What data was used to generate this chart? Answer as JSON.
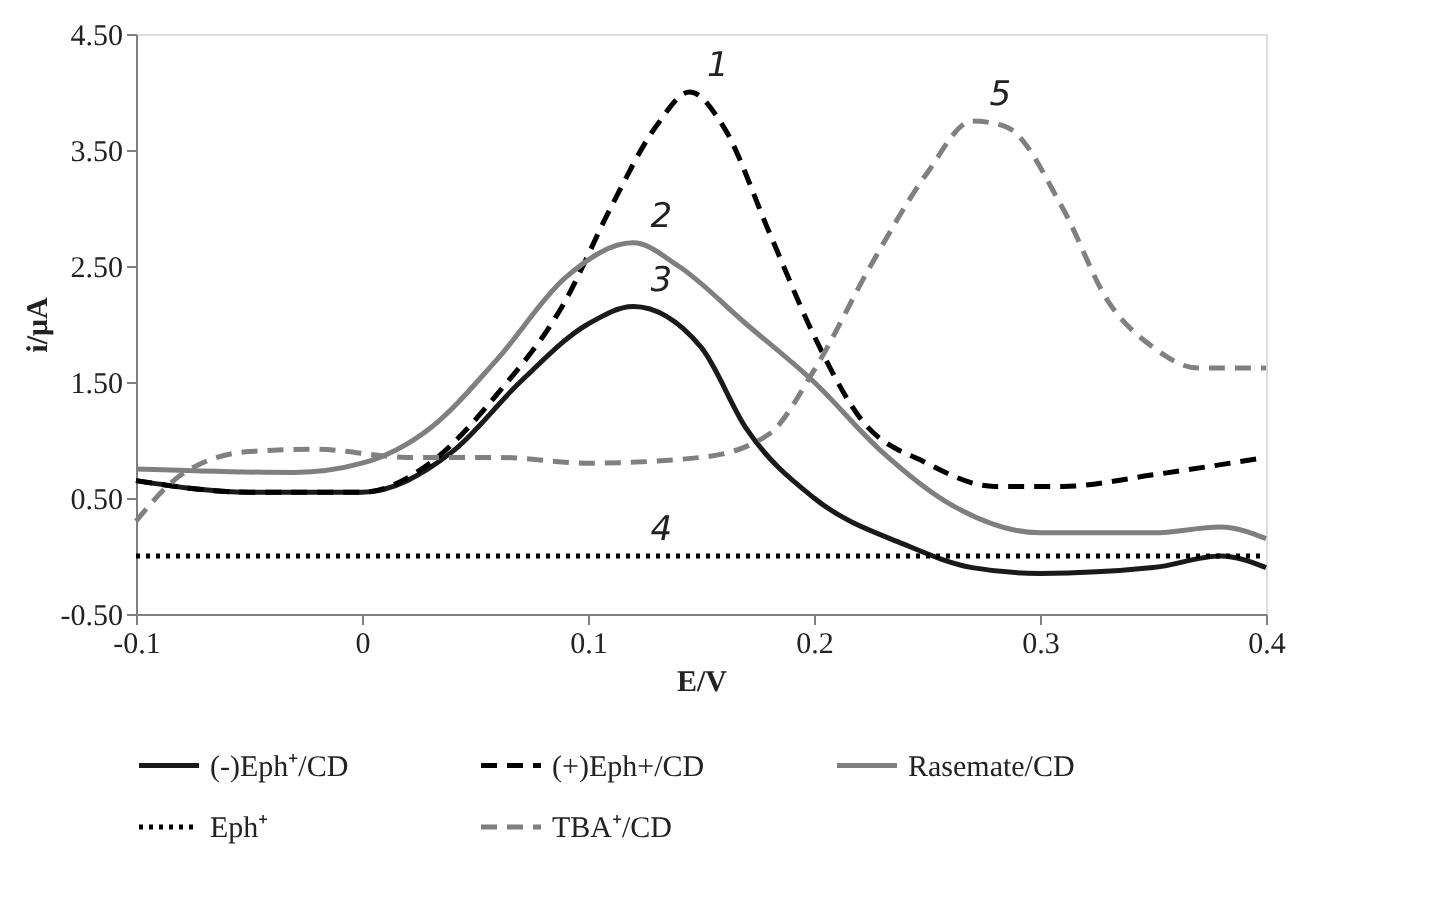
{
  "chart_data": {
    "type": "line",
    "xlabel": "E/V",
    "ylabel": "i/μA",
    "xlim": [
      -0.1,
      0.4
    ],
    "xticks": [
      -0.1,
      0,
      0.1,
      0.2,
      0.3,
      0.4
    ],
    "ylim": [
      -0.5,
      4.5
    ],
    "yticks": [
      {
        "value": -0.5,
        "label": "-0.50"
      },
      {
        "value": 0.5,
        "label": "0.50"
      },
      {
        "value": 1.5,
        "label": "1.50"
      },
      {
        "value": 2.5,
        "label": "2.50"
      },
      {
        "value": 3.5,
        "label": "3.50"
      },
      {
        "value": 4.5,
        "label": "4.50"
      }
    ],
    "grid": false,
    "legend": "bottom",
    "marker": "none",
    "series": [
      {
        "name": "(-)Eph⁺/CD",
        "color": "#1a1a1a",
        "line_style": "solid",
        "x": [
          -0.1,
          -0.05,
          0,
          0.04,
          0.07,
          0.1,
          0.12,
          0.15,
          0.17,
          0.2,
          0.24,
          0.27,
          0.3,
          0.35,
          0.38,
          0.4
        ],
        "values": [
          0.65,
          0.55,
          0.55,
          0.9,
          1.5,
          2.0,
          2.15,
          1.8,
          1.1,
          0.5,
          0.1,
          -0.1,
          -0.15,
          -0.1,
          0.0,
          -0.1
        ]
      },
      {
        "name": "(+)Eph+/CD",
        "color": "#000000",
        "line_style": "dashed",
        "x": [
          -0.1,
          -0.05,
          0,
          0.03,
          0.06,
          0.09,
          0.11,
          0.13,
          0.145,
          0.16,
          0.18,
          0.2,
          0.22,
          0.25,
          0.28,
          0.31,
          0.35,
          0.4
        ],
        "values": [
          0.65,
          0.55,
          0.55,
          0.8,
          1.4,
          2.2,
          3.0,
          3.7,
          4.0,
          3.7,
          2.8,
          1.9,
          1.2,
          0.8,
          0.6,
          0.6,
          0.7,
          0.85
        ]
      },
      {
        "name": "Rasemate/CD",
        "color": "#7f7f7f",
        "line_style": "solid",
        "x": [
          -0.1,
          -0.03,
          0,
          0.03,
          0.06,
          0.09,
          0.12,
          0.14,
          0.17,
          0.2,
          0.23,
          0.26,
          0.3,
          0.35,
          0.38,
          0.4
        ],
        "values": [
          0.75,
          0.72,
          0.8,
          1.1,
          1.7,
          2.4,
          2.7,
          2.5,
          2.0,
          1.5,
          0.9,
          0.45,
          0.2,
          0.2,
          0.25,
          0.15
        ]
      },
      {
        "name": "Eph⁺",
        "color": "#000000",
        "line_style": "dotted",
        "x": [
          -0.1,
          0.12,
          0.4
        ],
        "values": [
          0.0,
          0.0,
          0.0
        ]
      },
      {
        "name": "TBA⁺/CD",
        "color": "#808080",
        "line_style": "dashed",
        "x": [
          -0.1,
          -0.08,
          -0.05,
          -0.02,
          0.02,
          0.06,
          0.1,
          0.15,
          0.18,
          0.2,
          0.225,
          0.25,
          0.27,
          0.285,
          0.31,
          0.33,
          0.35,
          0.37,
          0.4
        ],
        "values": [
          0.3,
          0.7,
          0.9,
          0.92,
          0.85,
          0.85,
          0.8,
          0.85,
          1.05,
          1.6,
          2.5,
          3.3,
          3.75,
          3.7,
          3.0,
          2.2,
          1.8,
          1.62,
          1.62
        ]
      }
    ],
    "annotations": [
      {
        "text": "1",
        "x": 0.145,
        "y": 4.0
      },
      {
        "text": "2",
        "x": 0.12,
        "y": 2.7
      },
      {
        "text": "3",
        "x": 0.12,
        "y": 2.15
      },
      {
        "text": "4",
        "x": 0.12,
        "y": 0.0
      },
      {
        "text": "5",
        "x": 0.27,
        "y": 3.75
      }
    ]
  }
}
